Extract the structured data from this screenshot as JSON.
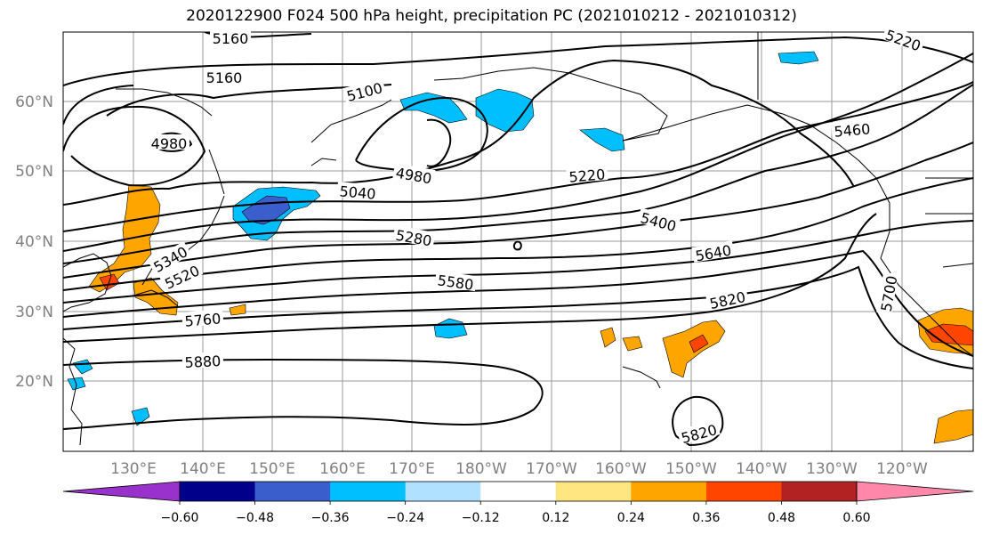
{
  "title": "2020122900 F024 500 hPa height, precipitation PC (2021010212 - 2021010312)",
  "lat_labels": [
    "60°N",
    "50°N",
    "40°N",
    "30°N",
    "20°N"
  ],
  "lon_labels": [
    "130°E",
    "140°E",
    "150°E",
    "160°E",
    "170°E",
    "180°W",
    "170°W",
    "160°W",
    "150°W",
    "140°W",
    "130°W",
    "120°W"
  ],
  "contour_labels": [
    "5160",
    "5160",
    "5100",
    "5220",
    "4980",
    "4980",
    "5040",
    "5220",
    "5460",
    "5400",
    "5280",
    "5340",
    "5520",
    "5640",
    "5580",
    "5760",
    "5820",
    "5700",
    "5880",
    "5820"
  ],
  "colorbar": {
    "colors": [
      "#9932cc",
      "#00008b",
      "#3a5fcd",
      "#00bfff",
      "#b0e2ff",
      "#ffffff",
      "#ffe680",
      "#ffa500",
      "#ff4500",
      "#b22222",
      "#ff88aa"
    ],
    "tick_labels": [
      "−0.60",
      "−0.48",
      "−0.36",
      "−0.24",
      "−0.12",
      "0.12",
      "0.24",
      "0.36",
      "0.48",
      "0.60"
    ]
  }
}
